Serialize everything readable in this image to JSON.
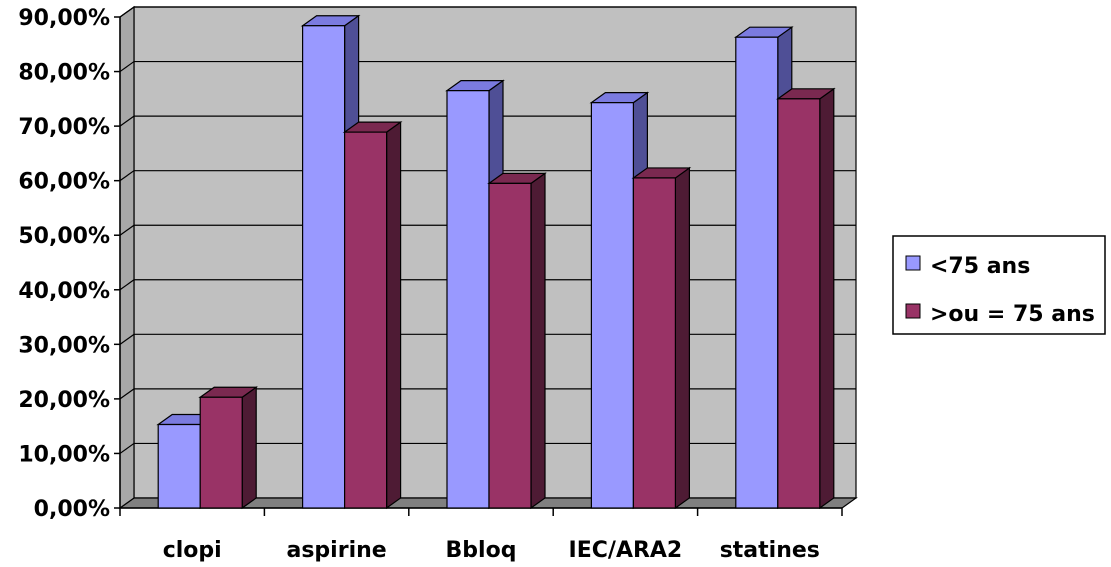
{
  "chart_data": {
    "type": "bar",
    "categories": [
      "clopi",
      "aspirine",
      "Bbloq",
      "IEC/ARA2",
      "statines"
    ],
    "series": [
      {
        "name": "<75 ans",
        "values": [
          15.3,
          88.4,
          76.5,
          74.3,
          86.3
        ]
      },
      {
        "name": ">ou = 75 ans",
        "values": [
          20.3,
          68.9,
          59.5,
          60.5,
          75.0
        ]
      }
    ],
    "ylim": [
      0,
      90
    ],
    "yticks": [
      "0,00%",
      "10,00%",
      "20,00%",
      "30,00%",
      "40,00%",
      "50,00%",
      "60,00%",
      "70,00%",
      "80,00%",
      "90,00%"
    ],
    "grid": true,
    "legend_position": "right",
    "three_d": true
  },
  "colors": {
    "series1_front": "#9999ff",
    "series1_side": "#4f4f96",
    "series1_top": "#7b7be0",
    "series2_front": "#993366",
    "series2_side": "#4e1b34",
    "series2_top": "#7a2950",
    "wall": "#c0c0c0",
    "floor": "#808080",
    "gridline": "#000000"
  }
}
